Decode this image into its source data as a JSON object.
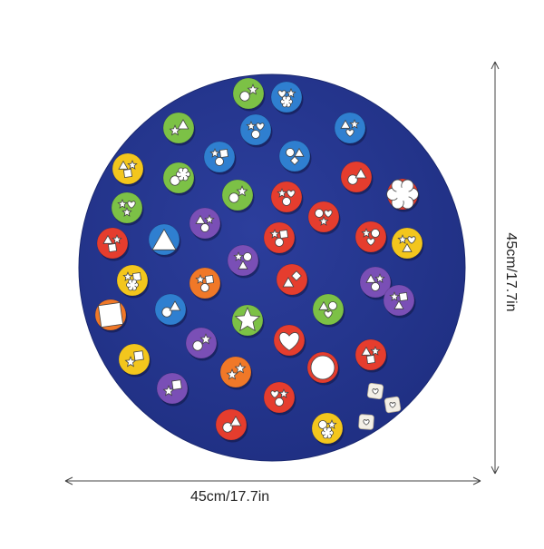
{
  "product": {
    "width_label": "45cm/17.7in",
    "height_label": "45cm/17.7in"
  },
  "colors": {
    "mat": "#27378f",
    "mat_edge": "#1d2b78",
    "dimension_line": "#333333",
    "token_palette": [
      "#7cc146",
      "#2f7fd0",
      "#e53d2e",
      "#f3c61d",
      "#7a4fb6",
      "#f07828",
      "#f2f2f2"
    ]
  },
  "pieces": {
    "token_count": 48,
    "dice_count": 3,
    "symbol_types": [
      "star-icon",
      "heart-icon",
      "circle-icon",
      "square-icon",
      "triangle-icon",
      "flower-icon"
    ]
  }
}
